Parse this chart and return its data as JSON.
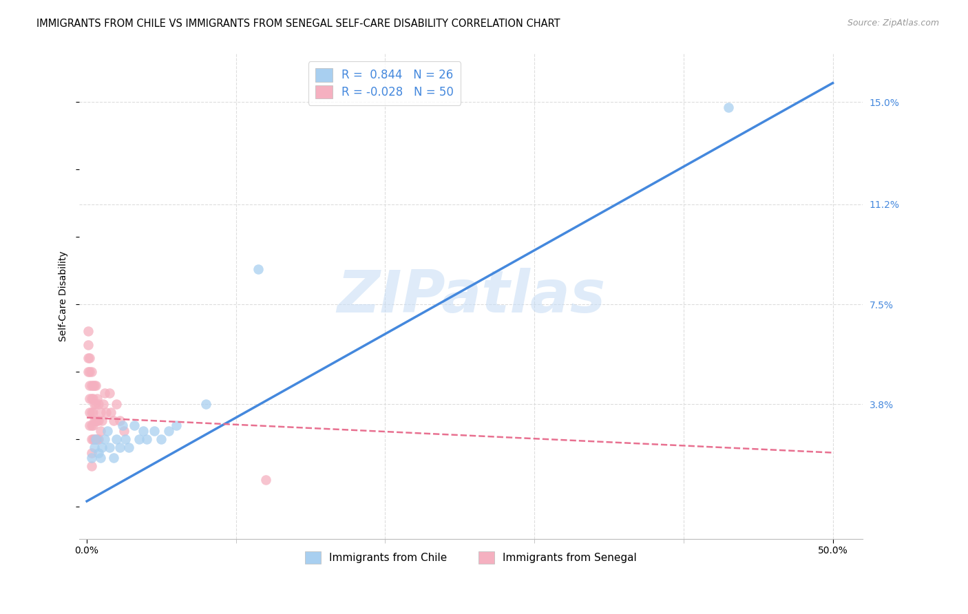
{
  "title": "IMMIGRANTS FROM CHILE VS IMMIGRANTS FROM SENEGAL SELF-CARE DISABILITY CORRELATION CHART",
  "source": "Source: ZipAtlas.com",
  "ylabel": "Self-Care Disability",
  "watermark": "ZIPatlas",
  "xlim": [
    -0.005,
    0.52
  ],
  "ylim": [
    -0.012,
    0.168
  ],
  "yticks_right": [
    0.038,
    0.075,
    0.112,
    0.15
  ],
  "ytick_labels_right": [
    "3.8%",
    "7.5%",
    "11.2%",
    "15.0%"
  ],
  "chile_R": "0.844",
  "chile_N": "26",
  "senegal_R": "-0.028",
  "senegal_N": "50",
  "chile_color": "#A8CFF0",
  "senegal_color": "#F5B0C0",
  "chile_line_color": "#4488DD",
  "senegal_line_color": "#E87090",
  "grid_color": "#DDDDDD",
  "right_tick_color": "#4488DD",
  "legend_text_color": "#4488DD",
  "background": "#FFFFFF",
  "chile_line_start_x": 0.0,
  "chile_line_start_y": 0.002,
  "chile_line_end_x": 0.5,
  "chile_line_end_y": 0.157,
  "senegal_line_start_x": 0.0,
  "senegal_line_start_y": 0.033,
  "senegal_line_end_x": 0.5,
  "senegal_line_end_y": 0.02,
  "chile_x": [
    0.003,
    0.005,
    0.006,
    0.008,
    0.009,
    0.01,
    0.012,
    0.014,
    0.015,
    0.018,
    0.02,
    0.022,
    0.024,
    0.026,
    0.028,
    0.032,
    0.035,
    0.038,
    0.04,
    0.045,
    0.05,
    0.055,
    0.06,
    0.08,
    0.115,
    0.43
  ],
  "chile_y": [
    0.018,
    0.022,
    0.025,
    0.02,
    0.018,
    0.022,
    0.025,
    0.028,
    0.022,
    0.018,
    0.025,
    0.022,
    0.03,
    0.025,
    0.022,
    0.03,
    0.025,
    0.028,
    0.025,
    0.028,
    0.025,
    0.028,
    0.03,
    0.038,
    0.088,
    0.148
  ],
  "senegal_x": [
    0.001,
    0.001,
    0.001,
    0.001,
    0.002,
    0.002,
    0.002,
    0.002,
    0.002,
    0.002,
    0.003,
    0.003,
    0.003,
    0.003,
    0.003,
    0.003,
    0.003,
    0.003,
    0.004,
    0.004,
    0.004,
    0.004,
    0.004,
    0.005,
    0.005,
    0.005,
    0.005,
    0.006,
    0.006,
    0.006,
    0.006,
    0.007,
    0.007,
    0.007,
    0.008,
    0.008,
    0.008,
    0.009,
    0.009,
    0.01,
    0.011,
    0.012,
    0.013,
    0.015,
    0.016,
    0.018,
    0.02,
    0.022,
    0.025,
    0.12
  ],
  "senegal_y": [
    0.05,
    0.055,
    0.06,
    0.065,
    0.045,
    0.05,
    0.055,
    0.04,
    0.035,
    0.03,
    0.05,
    0.045,
    0.04,
    0.035,
    0.03,
    0.025,
    0.02,
    0.015,
    0.045,
    0.04,
    0.035,
    0.03,
    0.025,
    0.045,
    0.038,
    0.032,
    0.025,
    0.045,
    0.038,
    0.032,
    0.025,
    0.04,
    0.032,
    0.025,
    0.038,
    0.032,
    0.025,
    0.035,
    0.028,
    0.032,
    0.038,
    0.042,
    0.035,
    0.042,
    0.035,
    0.032,
    0.038,
    0.032,
    0.028,
    0.01
  ]
}
